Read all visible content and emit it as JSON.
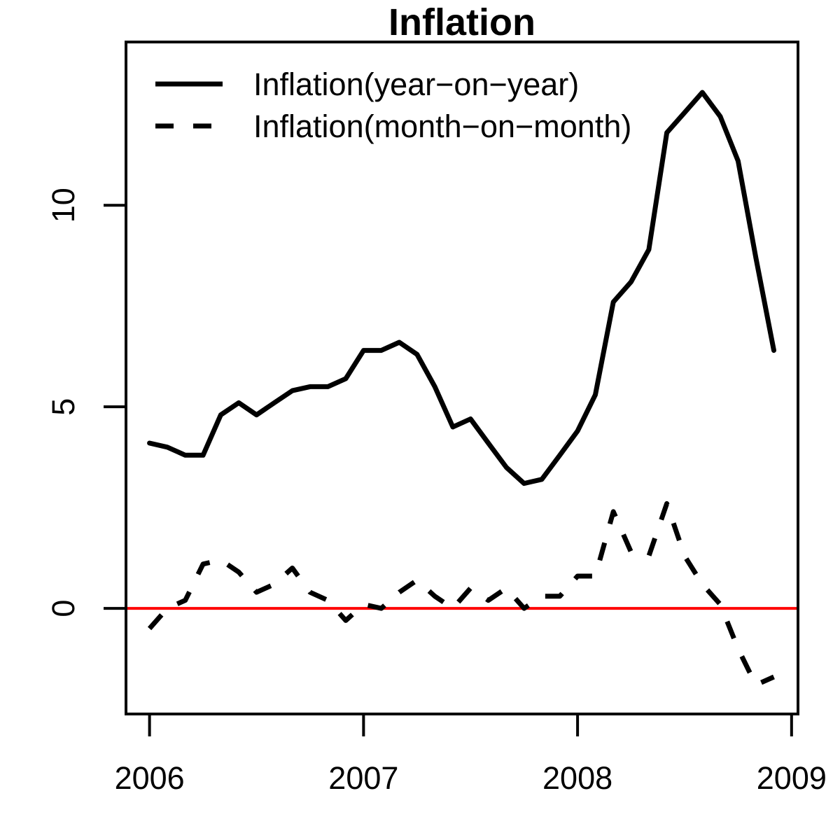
{
  "chart_data": {
    "type": "line",
    "title": "Inflation",
    "xlabel": "",
    "ylabel": "",
    "xlim": [
      2005.89,
      2009.03
    ],
    "ylim": [
      -2.62,
      14.05
    ],
    "x_ticks": [
      2006,
      2007,
      2008,
      2009
    ],
    "x_tick_labels": [
      "2006",
      "2007",
      "2008",
      "2009"
    ],
    "y_ticks": [
      0,
      5,
      10
    ],
    "y_tick_labels": [
      "0",
      "5",
      "10"
    ],
    "grid": false,
    "legend_position": "top-left",
    "reference_line": {
      "y": 0,
      "color": "#ff0000"
    },
    "series": [
      {
        "name": "Inflation(year−on−year)",
        "style": "solid",
        "color": "#000000",
        "x": [
          2006.0,
          2006.083,
          2006.167,
          2006.25,
          2006.333,
          2006.417,
          2006.5,
          2006.583,
          2006.667,
          2006.75,
          2006.833,
          2006.917,
          2007.0,
          2007.083,
          2007.167,
          2007.25,
          2007.333,
          2007.417,
          2007.5,
          2007.583,
          2007.667,
          2007.75,
          2007.833,
          2007.917,
          2008.0,
          2008.083,
          2008.167,
          2008.25,
          2008.333,
          2008.417,
          2008.5,
          2008.583,
          2008.667,
          2008.75,
          2008.833,
          2008.917
        ],
        "values": [
          4.1,
          4.0,
          3.8,
          3.8,
          4.8,
          5.1,
          4.8,
          5.1,
          5.4,
          5.5,
          5.5,
          5.7,
          6.4,
          6.4,
          6.6,
          6.3,
          5.5,
          4.5,
          4.7,
          4.1,
          3.5,
          3.1,
          3.2,
          3.8,
          4.4,
          5.3,
          7.6,
          8.1,
          8.9,
          11.8,
          12.3,
          12.8,
          12.2,
          11.1,
          8.7,
          6.4
        ]
      },
      {
        "name": "Inflation(month−on−month)",
        "style": "dashed",
        "color": "#000000",
        "x": [
          2006.0,
          2006.083,
          2006.167,
          2006.25,
          2006.333,
          2006.417,
          2006.5,
          2006.583,
          2006.667,
          2006.75,
          2006.833,
          2006.917,
          2007.0,
          2007.083,
          2007.167,
          2007.25,
          2007.333,
          2007.417,
          2007.5,
          2007.583,
          2007.667,
          2007.75,
          2007.833,
          2007.917,
          2008.0,
          2008.083,
          2008.167,
          2008.25,
          2008.333,
          2008.417,
          2008.5,
          2008.583,
          2008.667,
          2008.75,
          2008.833,
          2008.917
        ],
        "values": [
          -0.5,
          0.0,
          0.2,
          1.1,
          1.2,
          0.9,
          0.4,
          0.6,
          1.0,
          0.4,
          0.2,
          -0.3,
          0.1,
          0.0,
          0.4,
          0.7,
          0.3,
          0.0,
          0.5,
          0.2,
          0.5,
          0.0,
          0.3,
          0.3,
          0.8,
          0.8,
          2.4,
          1.4,
          1.3,
          2.6,
          1.3,
          0.6,
          0.1,
          -1.0,
          -1.9,
          -1.7
        ]
      }
    ]
  }
}
